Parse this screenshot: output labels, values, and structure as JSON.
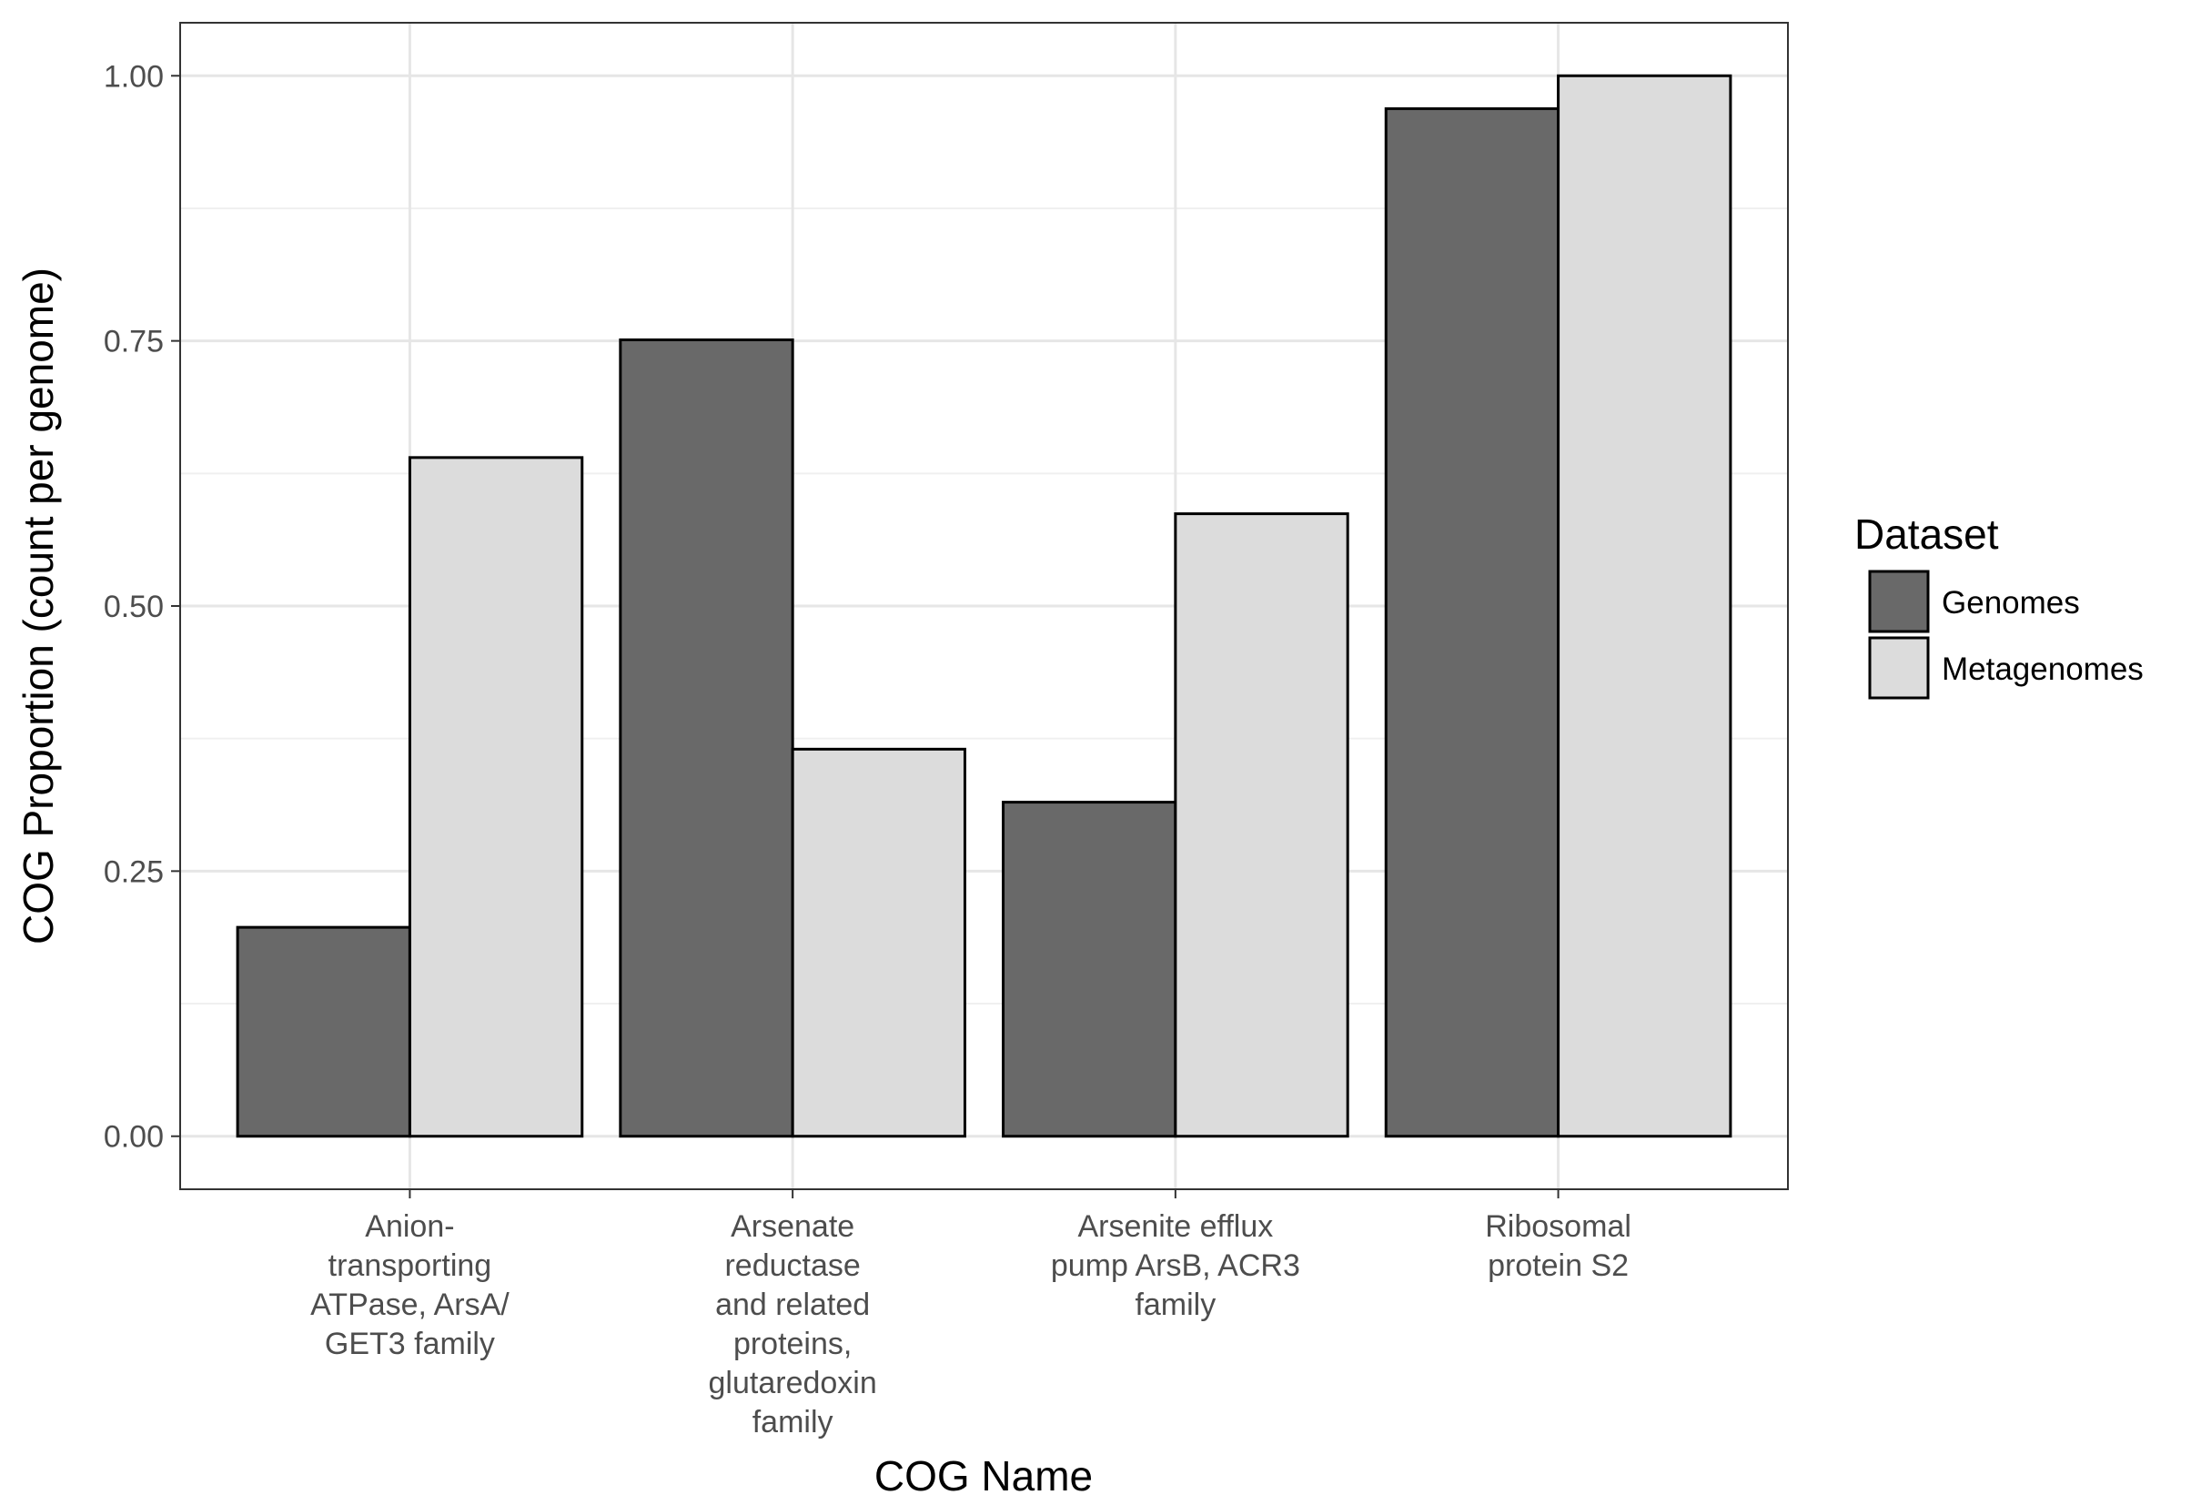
{
  "chart_data": {
    "type": "bar",
    "title": "",
    "xlabel": "COG Name",
    "ylabel": "COG Proportion (count per genome)",
    "ylim": [
      -0.05,
      1.05
    ],
    "yticks": [
      "0.00",
      "0.25",
      "0.50",
      "0.75",
      "1.00"
    ],
    "categories": [
      [
        "Anion-",
        "transporting",
        "ATPase, ArsA/",
        "GET3 family"
      ],
      [
        "Arsenate",
        "reductase",
        "and related",
        "proteins,",
        "glutaredoxin",
        "family"
      ],
      [
        "Arsenite efflux",
        "pump ArsB, ACR3",
        "family"
      ],
      [
        "Ribosomal",
        "protein S2"
      ]
    ],
    "series": [
      {
        "name": "Genomes",
        "color": "#696969",
        "values": [
          0.197,
          0.751,
          0.315,
          0.969
        ]
      },
      {
        "name": "Metagenomes",
        "color": "#dcdcdc",
        "values": [
          0.64,
          0.365,
          0.587,
          1.0
        ]
      }
    ],
    "grid": true,
    "legend": {
      "title": "Dataset",
      "position": "right"
    }
  }
}
